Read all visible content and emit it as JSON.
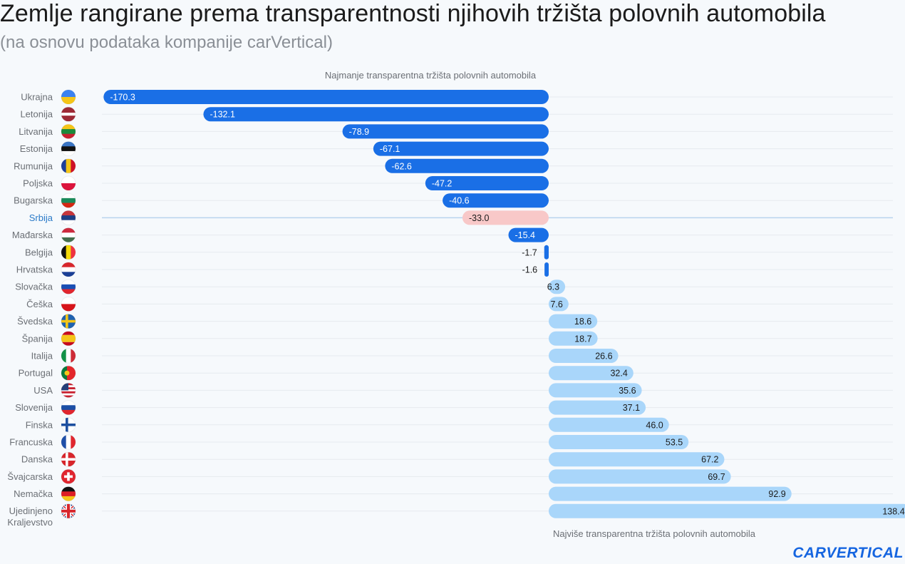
{
  "title": "Zemlje rangirane prema transparentnosti njihovih tržišta polovnih automobila",
  "subtitle": "(na osnovu podataka kompanije carVertical)",
  "brand": "CARVERTICAL",
  "colors": {
    "negative": "#1a6fe6",
    "positive": "#a9d6fa",
    "highlight": "#f8c8c8",
    "highlight_label": "#2a7ac8",
    "country_label": "#6b6f75",
    "grid": "#e6eaef",
    "highlight_line": "#b9d3ee"
  },
  "chart_data": {
    "type": "bar",
    "orientation": "horizontal",
    "annotation_top": "Najmanje transparentna tržišta polovnih automobila",
    "annotation_bottom": "Najviše transparentna tržišta polovnih automobila",
    "highlight": "Srbija",
    "categories": [
      "Ukrajna",
      "Letonija",
      "Litvanija",
      "Estonija",
      "Rumunija",
      "Poljska",
      "Bugarska",
      "Srbija",
      "Mađarska",
      "Belgija",
      "Hrvatska",
      "Slovačka",
      "Češka",
      "Švedska",
      "Španija",
      "Italija",
      "Portugal",
      "USA",
      "Slovenija",
      "Finska",
      "Francuska",
      "Danska",
      "Švajcarska",
      "Nemačka",
      "Ujedinjeno Kraljevstvo"
    ],
    "values": [
      -170.3,
      -132.1,
      -78.9,
      -67.1,
      -62.6,
      -47.2,
      -40.6,
      -33.0,
      -15.4,
      -1.7,
      -1.6,
      6.3,
      7.6,
      18.6,
      18.7,
      26.6,
      32.4,
      35.6,
      37.1,
      46.0,
      53.5,
      67.2,
      69.7,
      92.9,
      138.4
    ],
    "value_labels": [
      "-170.3",
      "-132.1",
      "-78.9",
      "-67.1",
      "-62.6",
      "-47.2",
      "-40.6",
      "-33.0",
      "-15.4",
      "-1.7",
      "-1.6",
      "6.3",
      "7.6",
      "18.6",
      "18.7",
      "26.6",
      "32.4",
      "35.6",
      "37.1",
      "46.0",
      "53.5",
      "67.2",
      "69.7",
      "92.9",
      "138.4"
    ],
    "flags": [
      "flag-ua",
      "flag-lv",
      "flag-lt",
      "flag-ee",
      "flag-ro",
      "flag-pl",
      "flag-bg",
      "flag-rs",
      "flag-hu",
      "flag-be",
      "flag-hr",
      "flag-sk",
      "flag-cz",
      "flag-se",
      "flag-es",
      "flag-it",
      "flag-pt",
      "flag-us",
      "flag-si",
      "flag-fi",
      "flag-fr",
      "flag-dk",
      "flag-ch",
      "flag-de",
      "flag-gb"
    ]
  }
}
